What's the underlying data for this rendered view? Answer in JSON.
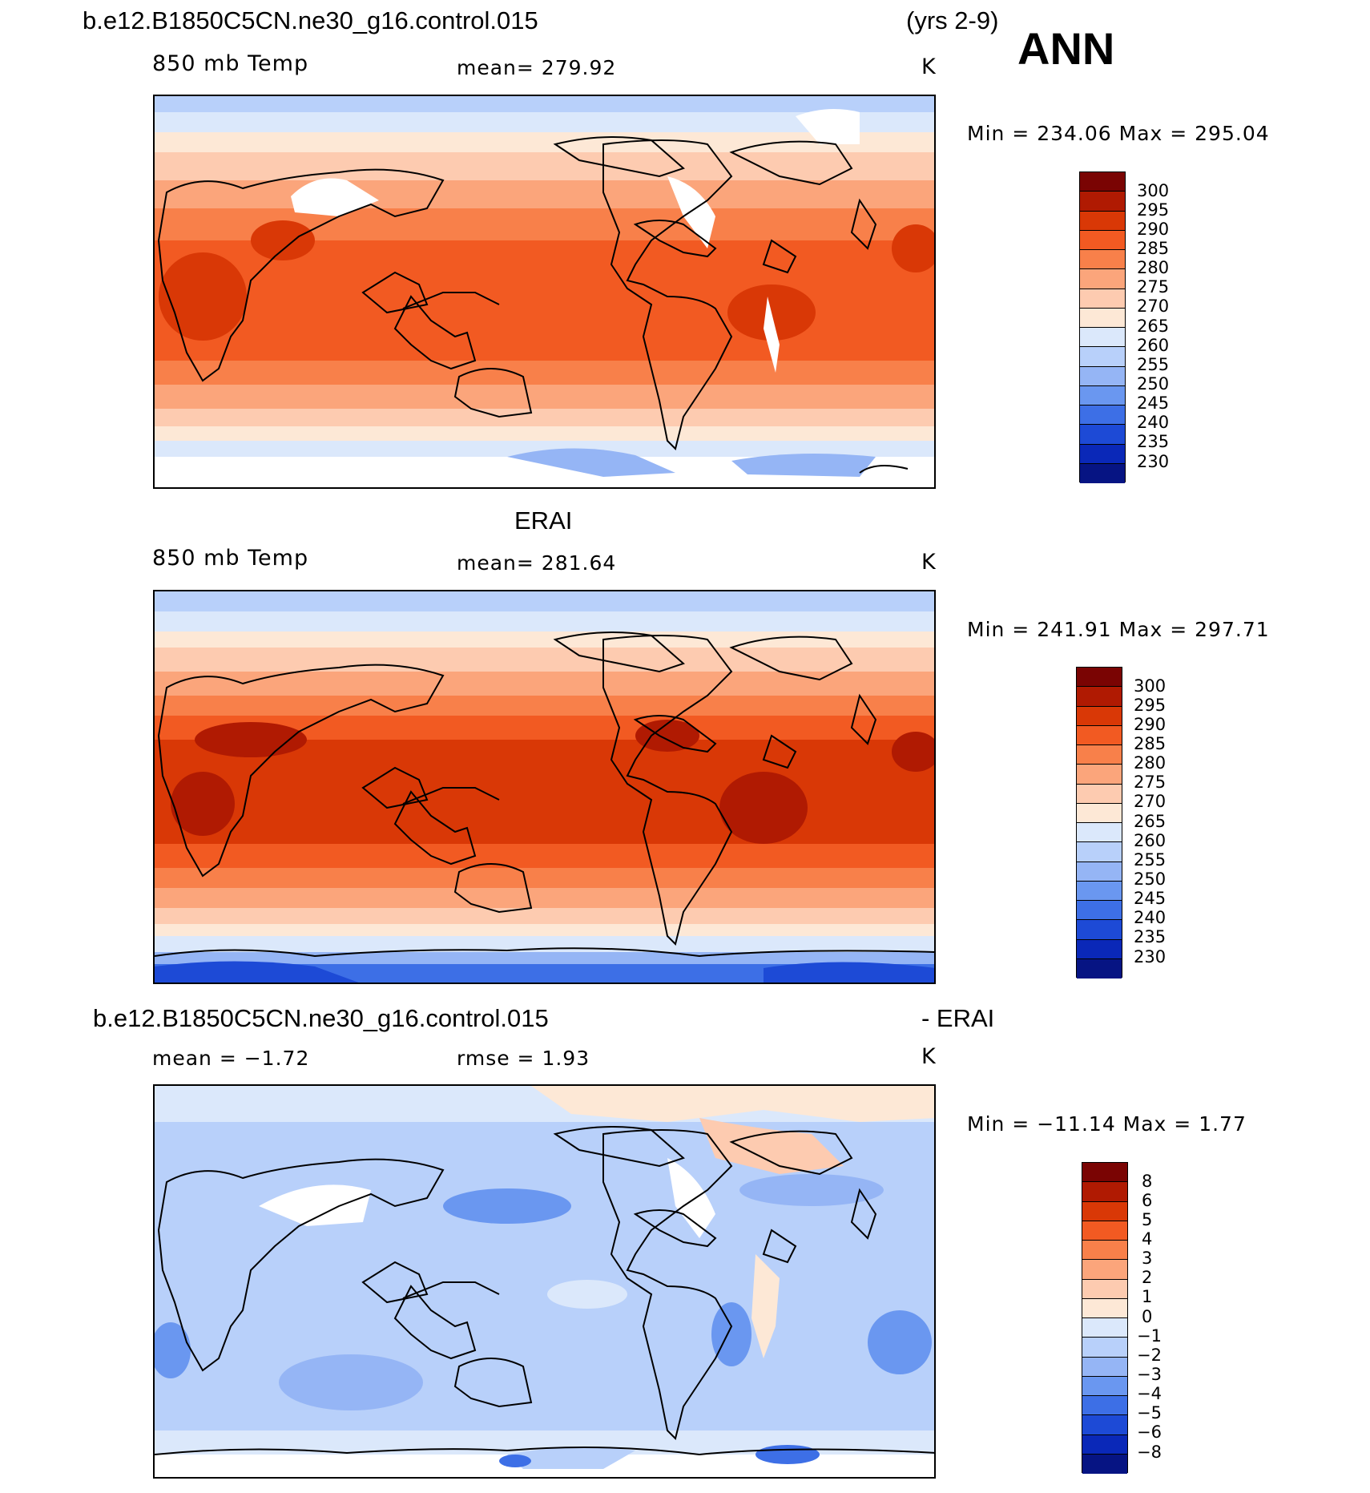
{
  "header": {
    "case_name": "b.e12.B1850C5CN.ne30_g16.control.015",
    "years": "(yrs 2-9)",
    "season": "ANN"
  },
  "panels": [
    {
      "id": "model",
      "variable": "850 mb Temp",
      "mean_text": "mean=  279.92",
      "units": "K",
      "minmax": "Min  =  234.06  Max  =  295.04",
      "colorbar_labels": [
        "300",
        "295",
        "290",
        "285",
        "280",
        "275",
        "270",
        "265",
        "260",
        "255",
        "250",
        "245",
        "240",
        "235",
        "230"
      ]
    },
    {
      "id": "obs",
      "title": "ERAI",
      "variable": "850 mb Temp",
      "mean_text": "mean=  281.64",
      "units": "K",
      "minmax": "Min  =  241.91  Max  =  297.71",
      "colorbar_labels": [
        "300",
        "295",
        "290",
        "285",
        "280",
        "275",
        "270",
        "265",
        "260",
        "255",
        "250",
        "245",
        "240",
        "235",
        "230"
      ]
    },
    {
      "id": "diff",
      "title_left": "b.e12.B1850C5CN.ne30_g16.control.015",
      "title_right": "- ERAI",
      "mean_text": "mean  =    −1.72",
      "rmse_text": "rmse  =      1.93",
      "units": "K",
      "minmax": "Min  =  −11.14  Max  =      1.77",
      "colorbar_labels": [
        "8",
        "6",
        "5",
        "4",
        "3",
        "2",
        "1",
        "0",
        "−1",
        "−2",
        "−3",
        "−4",
        "−5",
        "−6",
        "−8"
      ]
    }
  ],
  "colorbar_colors": [
    "#7a0403",
    "#b01a02",
    "#d93806",
    "#f25a22",
    "#f8804a",
    "#fba57b",
    "#fdcbb0",
    "#fde8d6",
    "#dbe8fb",
    "#b8d0fa",
    "#95b5f5",
    "#6a97f0",
    "#3d6fe6",
    "#1d4ad6",
    "#0a28b8",
    "#061483"
  ]
}
